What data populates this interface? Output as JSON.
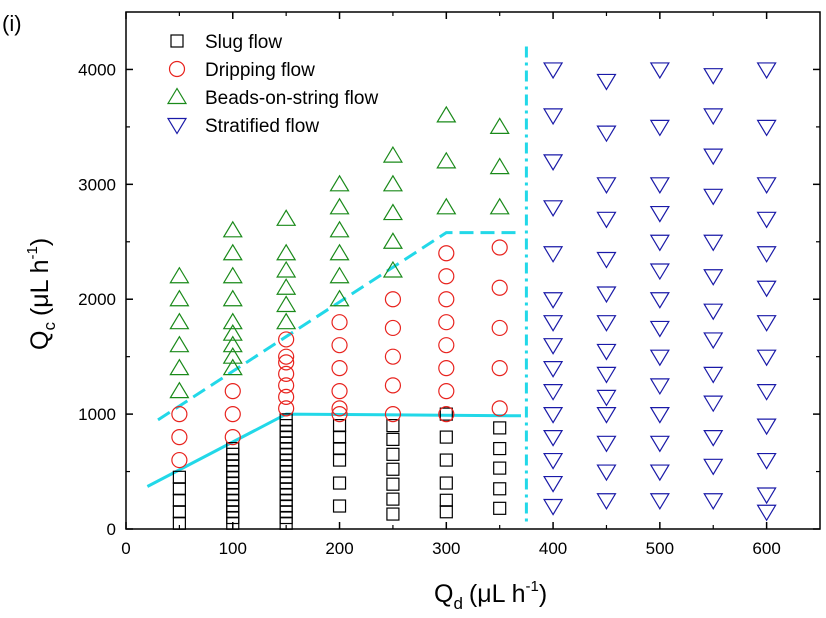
{
  "panel_label": "(i)",
  "chart_data": {
    "type": "scatter",
    "x_axis": {
      "title_main": "Q",
      "title_sub": "d",
      "title_units": "(μL h",
      "title_sup": "-1",
      "title_close": ")",
      "range": [
        0,
        650
      ],
      "ticks": [
        0,
        100,
        200,
        300,
        400,
        500,
        600
      ],
      "tick_labels": [
        "0",
        "100",
        "200",
        "300",
        "400",
        "500",
        "600"
      ]
    },
    "y_axis": {
      "title_main": "Q",
      "title_sub": "c",
      "title_units": "(μL h",
      "title_sup": "-1",
      "title_close": ")",
      "range": [
        0,
        4500
      ],
      "ticks": [
        0,
        1000,
        2000,
        3000,
        4000
      ],
      "tick_labels": [
        "0",
        "1000",
        "2000",
        "3000",
        "4000"
      ]
    },
    "legend_position": "top-left",
    "series": [
      {
        "name": "Slug flow",
        "marker": "square",
        "color": "#000000",
        "points": [
          [
            50,
            50
          ],
          [
            50,
            150
          ],
          [
            50,
            250
          ],
          [
            50,
            350
          ],
          [
            50,
            450
          ],
          [
            100,
            50
          ],
          [
            100,
            100
          ],
          [
            100,
            150
          ],
          [
            100,
            200
          ],
          [
            100,
            250
          ],
          [
            100,
            300
          ],
          [
            100,
            350
          ],
          [
            100,
            400
          ],
          [
            100,
            450
          ],
          [
            100,
            500
          ],
          [
            100,
            550
          ],
          [
            100,
            600
          ],
          [
            100,
            650
          ],
          [
            100,
            700
          ],
          [
            150,
            50
          ],
          [
            150,
            100
          ],
          [
            150,
            150
          ],
          [
            150,
            200
          ],
          [
            150,
            250
          ],
          [
            150,
            300
          ],
          [
            150,
            350
          ],
          [
            150,
            400
          ],
          [
            150,
            450
          ],
          [
            150,
            500
          ],
          [
            150,
            550
          ],
          [
            150,
            600
          ],
          [
            150,
            650
          ],
          [
            150,
            700
          ],
          [
            150,
            750
          ],
          [
            150,
            800
          ],
          [
            150,
            850
          ],
          [
            150,
            900
          ],
          [
            150,
            950
          ],
          [
            200,
            200
          ],
          [
            200,
            400
          ],
          [
            200,
            600
          ],
          [
            200,
            700
          ],
          [
            200,
            800
          ],
          [
            200,
            900
          ],
          [
            250,
            130
          ],
          [
            250,
            260
          ],
          [
            250,
            390
          ],
          [
            250,
            520
          ],
          [
            250,
            650
          ],
          [
            250,
            780
          ],
          [
            250,
            900
          ],
          [
            300,
            150
          ],
          [
            300,
            250
          ],
          [
            300,
            400
          ],
          [
            300,
            600
          ],
          [
            300,
            800
          ],
          [
            300,
            1000
          ],
          [
            350,
            180
          ],
          [
            350,
            350
          ],
          [
            350,
            530
          ],
          [
            350,
            700
          ],
          [
            350,
            880
          ]
        ]
      },
      {
        "name": "Dripping flow",
        "marker": "circle",
        "color": "#e8231e",
        "points": [
          [
            50,
            600
          ],
          [
            50,
            800
          ],
          [
            50,
            1000
          ],
          [
            100,
            800
          ],
          [
            100,
            1000
          ],
          [
            100,
            1200
          ],
          [
            150,
            1050
          ],
          [
            150,
            1150
          ],
          [
            150,
            1250
          ],
          [
            150,
            1350
          ],
          [
            150,
            1450
          ],
          [
            150,
            1500
          ],
          [
            150,
            1650
          ],
          [
            200,
            1000
          ],
          [
            200,
            1050
          ],
          [
            200,
            1200
          ],
          [
            200,
            1400
          ],
          [
            200,
            1600
          ],
          [
            200,
            1800
          ],
          [
            250,
            1000
          ],
          [
            250,
            1250
          ],
          [
            250,
            1500
          ],
          [
            250,
            1750
          ],
          [
            250,
            2000
          ],
          [
            300,
            1000
          ],
          [
            300,
            1200
          ],
          [
            300,
            1400
          ],
          [
            300,
            1600
          ],
          [
            300,
            1800
          ],
          [
            300,
            2000
          ],
          [
            300,
            2200
          ],
          [
            300,
            2400
          ],
          [
            350,
            1050
          ],
          [
            350,
            1400
          ],
          [
            350,
            1750
          ],
          [
            350,
            2100
          ],
          [
            350,
            2450
          ]
        ]
      },
      {
        "name": "Beads-on-string flow",
        "marker": "triangle-up",
        "color": "#1a8a1a",
        "points": [
          [
            50,
            1200
          ],
          [
            50,
            1400
          ],
          [
            50,
            1600
          ],
          [
            50,
            1800
          ],
          [
            50,
            2000
          ],
          [
            50,
            2200
          ],
          [
            100,
            1400
          ],
          [
            100,
            1500
          ],
          [
            100,
            1600
          ],
          [
            100,
            1700
          ],
          [
            100,
            1800
          ],
          [
            100,
            2000
          ],
          [
            100,
            2200
          ],
          [
            100,
            2400
          ],
          [
            100,
            2600
          ],
          [
            150,
            1800
          ],
          [
            150,
            1950
          ],
          [
            150,
            2100
          ],
          [
            150,
            2250
          ],
          [
            150,
            2400
          ],
          [
            150,
            2700
          ],
          [
            200,
            2000
          ],
          [
            200,
            2200
          ],
          [
            200,
            2400
          ],
          [
            200,
            2600
          ],
          [
            200,
            2800
          ],
          [
            200,
            3000
          ],
          [
            250,
            2250
          ],
          [
            250,
            2500
          ],
          [
            250,
            2750
          ],
          [
            250,
            3000
          ],
          [
            250,
            3250
          ],
          [
            300,
            2800
          ],
          [
            300,
            3200
          ],
          [
            300,
            3600
          ],
          [
            350,
            2800
          ],
          [
            350,
            3150
          ],
          [
            350,
            3500
          ]
        ]
      },
      {
        "name": "Stratified flow",
        "marker": "triangle-down",
        "color": "#1a1aa8",
        "points": [
          [
            400,
            200
          ],
          [
            400,
            400
          ],
          [
            400,
            600
          ],
          [
            400,
            800
          ],
          [
            400,
            1000
          ],
          [
            400,
            1200
          ],
          [
            400,
            1400
          ],
          [
            400,
            1600
          ],
          [
            400,
            1800
          ],
          [
            400,
            2000
          ],
          [
            400,
            2400
          ],
          [
            400,
            2800
          ],
          [
            400,
            3200
          ],
          [
            400,
            3600
          ],
          [
            400,
            4000
          ],
          [
            450,
            250
          ],
          [
            450,
            500
          ],
          [
            450,
            750
          ],
          [
            450,
            1000
          ],
          [
            450,
            1150
          ],
          [
            450,
            1350
          ],
          [
            450,
            1550
          ],
          [
            450,
            1800
          ],
          [
            450,
            2050
          ],
          [
            450,
            2350
          ],
          [
            450,
            2700
          ],
          [
            450,
            3000
          ],
          [
            450,
            3450
          ],
          [
            450,
            3900
          ],
          [
            500,
            250
          ],
          [
            500,
            500
          ],
          [
            500,
            750
          ],
          [
            500,
            1000
          ],
          [
            500,
            1250
          ],
          [
            500,
            1500
          ],
          [
            500,
            1750
          ],
          [
            500,
            2000
          ],
          [
            500,
            2250
          ],
          [
            500,
            2500
          ],
          [
            500,
            2750
          ],
          [
            500,
            3000
          ],
          [
            500,
            3500
          ],
          [
            500,
            4000
          ],
          [
            550,
            250
          ],
          [
            550,
            550
          ],
          [
            550,
            800
          ],
          [
            550,
            1100
          ],
          [
            550,
            1350
          ],
          [
            550,
            1650
          ],
          [
            550,
            1900
          ],
          [
            550,
            2200
          ],
          [
            550,
            2500
          ],
          [
            550,
            2900
          ],
          [
            550,
            3250
          ],
          [
            550,
            3600
          ],
          [
            550,
            3950
          ],
          [
            600,
            150
          ],
          [
            600,
            300
          ],
          [
            600,
            600
          ],
          [
            600,
            900
          ],
          [
            600,
            1200
          ],
          [
            600,
            1500
          ],
          [
            600,
            1800
          ],
          [
            600,
            2100
          ],
          [
            600,
            2400
          ],
          [
            600,
            2700
          ],
          [
            600,
            3000
          ],
          [
            600,
            3500
          ],
          [
            600,
            4000
          ]
        ]
      }
    ],
    "boundary_lines": [
      {
        "style": "solid",
        "color": "#22d8e8",
        "points": [
          [
            20,
            370
          ],
          [
            150,
            1000
          ],
          [
            370,
            985
          ]
        ]
      },
      {
        "style": "dashed",
        "color": "#22d8e8",
        "points": [
          [
            30,
            950
          ],
          [
            300,
            2580
          ],
          [
            370,
            2580
          ]
        ]
      },
      {
        "style": "dash-dot",
        "color": "#22d8e8",
        "points": [
          [
            375,
            4200
          ],
          [
            375,
            50
          ]
        ]
      }
    ]
  }
}
